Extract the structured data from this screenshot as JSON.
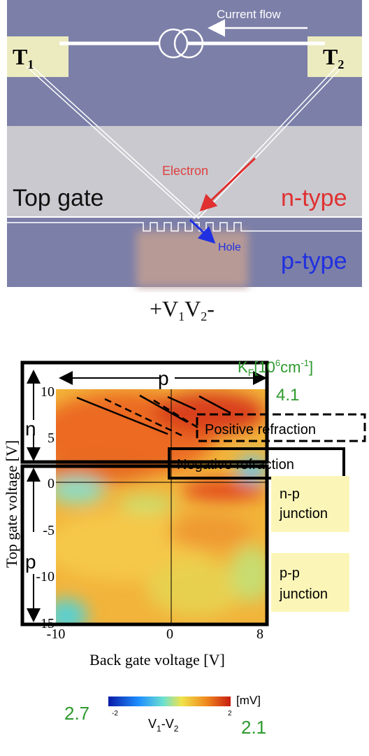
{
  "schematic": {
    "current_flow": "Current flow",
    "t1": {
      "main": "T",
      "sub": "1"
    },
    "t2": {
      "main": "T",
      "sub": "2"
    },
    "electron": "Electron",
    "top_gate": "Top gate",
    "n_type": "n-type",
    "hole": "Hole",
    "p_type": "p-type",
    "voltage": [
      {
        "main": "+V",
        "sub": "1"
      },
      {
        "main": "V",
        "sub": "2"
      },
      {
        "main": "-",
        "sub": ""
      }
    ]
  },
  "map": {
    "kf_label": {
      "main": "K",
      "sub": "F",
      "rest": "[10",
      "sup1": "6",
      "rest2": "cm",
      "sup2": "-1",
      "end": "]"
    },
    "kf_top": "4.1",
    "kf_left": "2.7",
    "kf_right": "2.1",
    "region_p_top": "p",
    "region_n": "n",
    "region_p_left": "p",
    "positive": "Positive refraction",
    "negative": "Negative refraction",
    "np_junction": [
      "n-p",
      "junction"
    ],
    "pp_junction": [
      "p-p",
      "junction"
    ],
    "y_label": "Top gate voltage [V]",
    "x_label": "Back gate voltage [V]",
    "yticks": [
      "10",
      "5",
      "0",
      "-5",
      "-10",
      "-15"
    ],
    "xticks": [
      "-10",
      "0",
      "8"
    ],
    "colorbar": {
      "min": "-2",
      "max": "2",
      "unit": "[mV]",
      "label": {
        "a": "V",
        "as": "1",
        "mid": "-V",
        "bs": "2"
      }
    }
  }
}
